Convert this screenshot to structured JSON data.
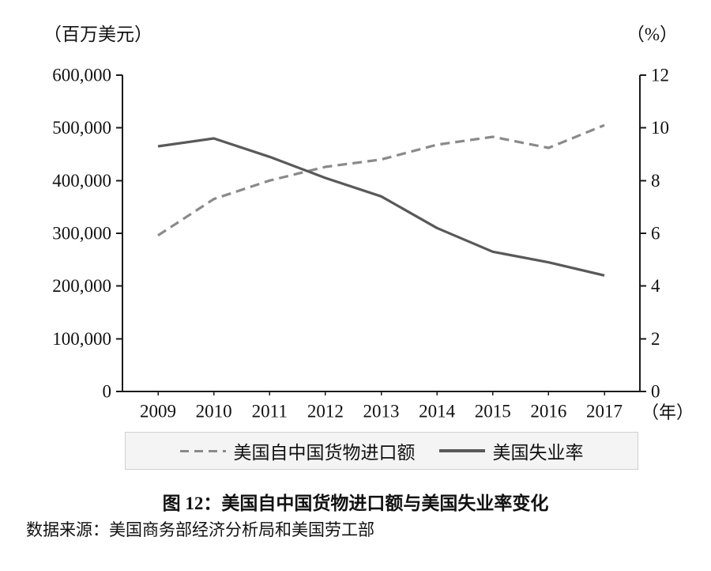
{
  "caption": "图 12：美国自中国货物进口额与美国失业率变化",
  "source": "数据来源：美国商务部经济分析局和美国劳工部",
  "colors": {
    "imports": "#8a8a8a",
    "unemployment": "#595959",
    "axis": "#1a1a1a",
    "text": "#111111"
  },
  "legend": {
    "items": [
      {
        "label": "美国自中国货物进口额",
        "style": "dashed"
      },
      {
        "label": "美国失业率",
        "style": "solid"
      }
    ]
  },
  "chart_data": {
    "type": "line",
    "title": "图 12：美国自中国货物进口额与美国失业率变化",
    "x": [
      "2009",
      "2010",
      "2011",
      "2012",
      "2013",
      "2014",
      "2015",
      "2016",
      "2017"
    ],
    "x_unit": "（年）",
    "grid": false,
    "legend_position": "bottom",
    "left_axis": {
      "unit": "（百万美元）",
      "min": 0,
      "max": 600000,
      "tick_labels": [
        "0",
        "100,000",
        "200,000",
        "300,000",
        "400,000",
        "500,000",
        "600,000"
      ]
    },
    "right_axis": {
      "unit": "（%）",
      "min": 0,
      "max": 12,
      "tick_labels": [
        "0",
        "2",
        "4",
        "6",
        "8",
        "10",
        "12"
      ]
    },
    "series": [
      {
        "name": "美国自中国货物进口额",
        "axis": "left",
        "line_style": "dashed",
        "values": [
          296000,
          365000,
          400000,
          426000,
          440000,
          468000,
          483000,
          462000,
          505000
        ]
      },
      {
        "name": "美国失业率",
        "axis": "right",
        "line_style": "solid",
        "values": [
          9.3,
          9.6,
          8.9,
          8.1,
          7.4,
          6.2,
          5.3,
          4.9,
          4.4
        ]
      }
    ]
  }
}
